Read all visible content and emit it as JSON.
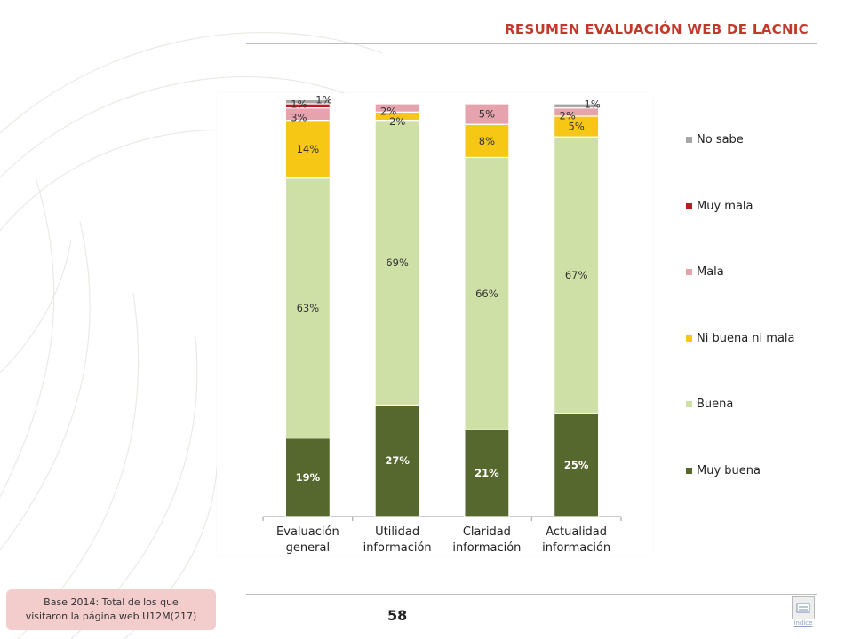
{
  "header": {
    "title": "RESUMEN EVALUACIÓN WEB DE LACNIC"
  },
  "footer": {
    "base_line1": "Base 2014: Total de los que",
    "base_line2": "visitaron  la página web U12M(217)",
    "page_number": "58",
    "index_label": "índice"
  },
  "chart_data": {
    "type": "bar",
    "stacked": true,
    "categories": [
      [
        "Evaluación",
        "general"
      ],
      [
        "Utilidad",
        "información"
      ],
      [
        "Claridad",
        "información"
      ],
      [
        "Actualidad",
        "información"
      ]
    ],
    "series": [
      {
        "name": "Muy buena",
        "color": "#56682d",
        "values": [
          19,
          27,
          21,
          25
        ],
        "labels": [
          "19%",
          "27%",
          "21%",
          "25%"
        ]
      },
      {
        "name": "Buena",
        "color": "#cfe0a6",
        "values": [
          63,
          69,
          66,
          67
        ],
        "labels": [
          "63%",
          "69%",
          "66%",
          "67%"
        ]
      },
      {
        "name": "Ni buena ni mala",
        "color": "#f7c716",
        "values": [
          14,
          2,
          8,
          5
        ],
        "labels": [
          "14%",
          "2%",
          "8%",
          "5%"
        ]
      },
      {
        "name": "Mala",
        "color": "#e6a3ad",
        "values": [
          3,
          2,
          5,
          2
        ],
        "labels": [
          "3%",
          "2%",
          "5%",
          "2%"
        ]
      },
      {
        "name": "Muy mala",
        "color": "#c4161c",
        "values": [
          1,
          0,
          0,
          0
        ],
        "labels": [
          "1%",
          "",
          "",
          ""
        ]
      },
      {
        "name": "No sabe",
        "color": "#a6a6a6",
        "values": [
          1,
          0,
          0,
          1
        ],
        "labels": [
          "1%",
          "",
          "",
          "1%"
        ]
      }
    ],
    "ylim": [
      0,
      100
    ],
    "legend_position": "right",
    "grid": false
  }
}
